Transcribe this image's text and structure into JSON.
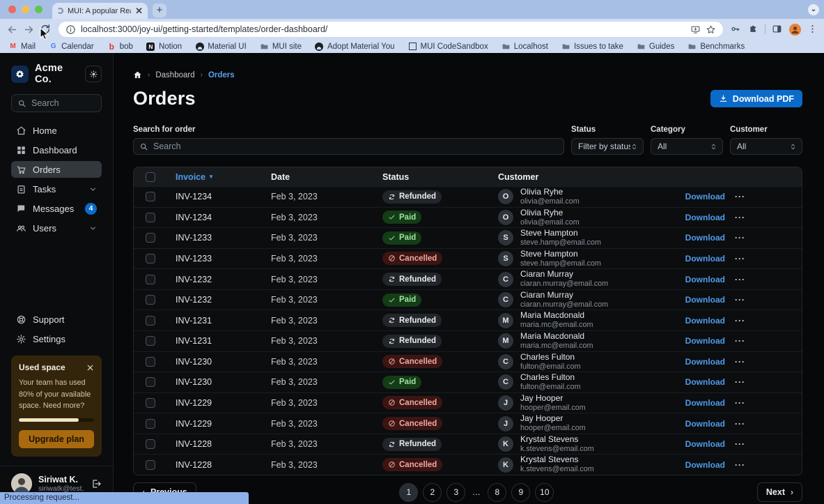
{
  "browser": {
    "tab_title": "MUI: A popular React UI fram",
    "url": "localhost:3000/joy-ui/getting-started/templates/order-dashboard/",
    "status_text": "Processing request...",
    "bookmarks": [
      {
        "label": "Mail",
        "icon": "gmail"
      },
      {
        "label": "Calendar",
        "icon": "google"
      },
      {
        "label": "bob",
        "icon": "bob"
      },
      {
        "label": "Notion",
        "icon": "notion"
      },
      {
        "label": "Material UI",
        "icon": "github"
      },
      {
        "label": "MUI site",
        "icon": "folder"
      },
      {
        "label": "Adopt Material You",
        "icon": "github"
      },
      {
        "label": "MUI CodeSandbox",
        "icon": "codesandbox"
      },
      {
        "label": "Localhost",
        "icon": "folder"
      },
      {
        "label": "Issues to take",
        "icon": "folder"
      },
      {
        "label": "Guides",
        "icon": "folder"
      },
      {
        "label": "Benchmarks",
        "icon": "folder"
      }
    ]
  },
  "sidebar": {
    "brand": "Acme Co.",
    "search_placeholder": "Search",
    "nav": [
      {
        "id": "home",
        "label": "Home",
        "icon": "home"
      },
      {
        "id": "dashboard",
        "label": "Dashboard",
        "icon": "dashboard"
      },
      {
        "id": "orders",
        "label": "Orders",
        "icon": "cart",
        "active": true
      },
      {
        "id": "tasks",
        "label": "Tasks",
        "icon": "tasks",
        "chevron": true
      },
      {
        "id": "messages",
        "label": "Messages",
        "icon": "messages",
        "badge": "4"
      },
      {
        "id": "users",
        "label": "Users",
        "icon": "users",
        "chevron": true
      }
    ],
    "footer_nav": [
      {
        "id": "support",
        "label": "Support",
        "icon": "support"
      },
      {
        "id": "settings",
        "label": "Settings",
        "icon": "settings"
      }
    ],
    "used_space": {
      "title": "Used space",
      "body": "Your team has used 80% of your available space. Need more?",
      "percent": 80,
      "cta": "Upgrade plan"
    },
    "user": {
      "name": "Siriwat K.",
      "email": "siriwatk@test.com"
    }
  },
  "main": {
    "breadcrumb": {
      "items": [
        "Dashboard",
        "Orders"
      ]
    },
    "title": "Orders",
    "download_pdf": "Download PDF",
    "search": {
      "label": "Search for order",
      "placeholder": "Search"
    },
    "filters": [
      {
        "label": "Status",
        "value": "Filter by status"
      },
      {
        "label": "Category",
        "value": "All"
      },
      {
        "label": "Customer",
        "value": "All"
      }
    ],
    "table": {
      "headers": {
        "invoice": "Invoice",
        "date": "Date",
        "status": "Status",
        "customer": "Customer"
      },
      "row_action": "Download",
      "rows": [
        {
          "invoice": "INV-1234",
          "date": "Feb 3, 2023",
          "status": "Refunded",
          "initial": "O",
          "name": "Olivia Ryhe",
          "email": "olivia@email.com"
        },
        {
          "invoice": "INV-1234",
          "date": "Feb 3, 2023",
          "status": "Paid",
          "initial": "O",
          "name": "Olivia Ryhe",
          "email": "olivia@email.com"
        },
        {
          "invoice": "INV-1233",
          "date": "Feb 3, 2023",
          "status": "Paid",
          "initial": "S",
          "name": "Steve Hampton",
          "email": "steve.hamp@email.com"
        },
        {
          "invoice": "INV-1233",
          "date": "Feb 3, 2023",
          "status": "Cancelled",
          "initial": "S",
          "name": "Steve Hampton",
          "email": "steve.hamp@email.com"
        },
        {
          "invoice": "INV-1232",
          "date": "Feb 3, 2023",
          "status": "Refunded",
          "initial": "C",
          "name": "Ciaran Murray",
          "email": "ciaran.murray@email.com"
        },
        {
          "invoice": "INV-1232",
          "date": "Feb 3, 2023",
          "status": "Paid",
          "initial": "C",
          "name": "Ciaran Murray",
          "email": "ciaran.murray@email.com"
        },
        {
          "invoice": "INV-1231",
          "date": "Feb 3, 2023",
          "status": "Refunded",
          "initial": "M",
          "name": "Maria Macdonald",
          "email": "maria.mc@email.com"
        },
        {
          "invoice": "INV-1231",
          "date": "Feb 3, 2023",
          "status": "Refunded",
          "initial": "M",
          "name": "Maria Macdonald",
          "email": "maria.mc@email.com"
        },
        {
          "invoice": "INV-1230",
          "date": "Feb 3, 2023",
          "status": "Cancelled",
          "initial": "C",
          "name": "Charles Fulton",
          "email": "fulton@email.com"
        },
        {
          "invoice": "INV-1230",
          "date": "Feb 3, 2023",
          "status": "Paid",
          "initial": "C",
          "name": "Charles Fulton",
          "email": "fulton@email.com"
        },
        {
          "invoice": "INV-1229",
          "date": "Feb 3, 2023",
          "status": "Cancelled",
          "initial": "J",
          "name": "Jay Hooper",
          "email": "hooper@email.com"
        },
        {
          "invoice": "INV-1229",
          "date": "Feb 3, 2023",
          "status": "Cancelled",
          "initial": "J",
          "name": "Jay Hooper",
          "email": "hooper@email.com"
        },
        {
          "invoice": "INV-1228",
          "date": "Feb 3, 2023",
          "status": "Refunded",
          "initial": "K",
          "name": "Krystal Stevens",
          "email": "k.stevens@email.com"
        },
        {
          "invoice": "INV-1228",
          "date": "Feb 3, 2023",
          "status": "Cancelled",
          "initial": "K",
          "name": "Krystal Stevens",
          "email": "k.stevens@email.com"
        }
      ]
    },
    "pagination": {
      "previous": "Previous",
      "next": "Next",
      "items": [
        {
          "label": "1",
          "type": "page",
          "current": true
        },
        {
          "label": "2",
          "type": "page"
        },
        {
          "label": "3",
          "type": "page"
        },
        {
          "label": "…",
          "type": "gap"
        },
        {
          "label": "8",
          "type": "page"
        },
        {
          "label": "9",
          "type": "page"
        },
        {
          "label": "10",
          "type": "page"
        }
      ]
    }
  },
  "colors": {
    "primary": "#0B6BCB",
    "link": "#4D9AEC",
    "success_chip_bg": "#143C16",
    "success_chip_text": "#9FE2A2",
    "danger_chip_bg": "#3C1513",
    "danger_chip_text": "#EFA9A4",
    "neutral_chip_bg": "#22262A",
    "warning_card_bg": "#33250C",
    "warning_button_bg": "#A9690F"
  }
}
